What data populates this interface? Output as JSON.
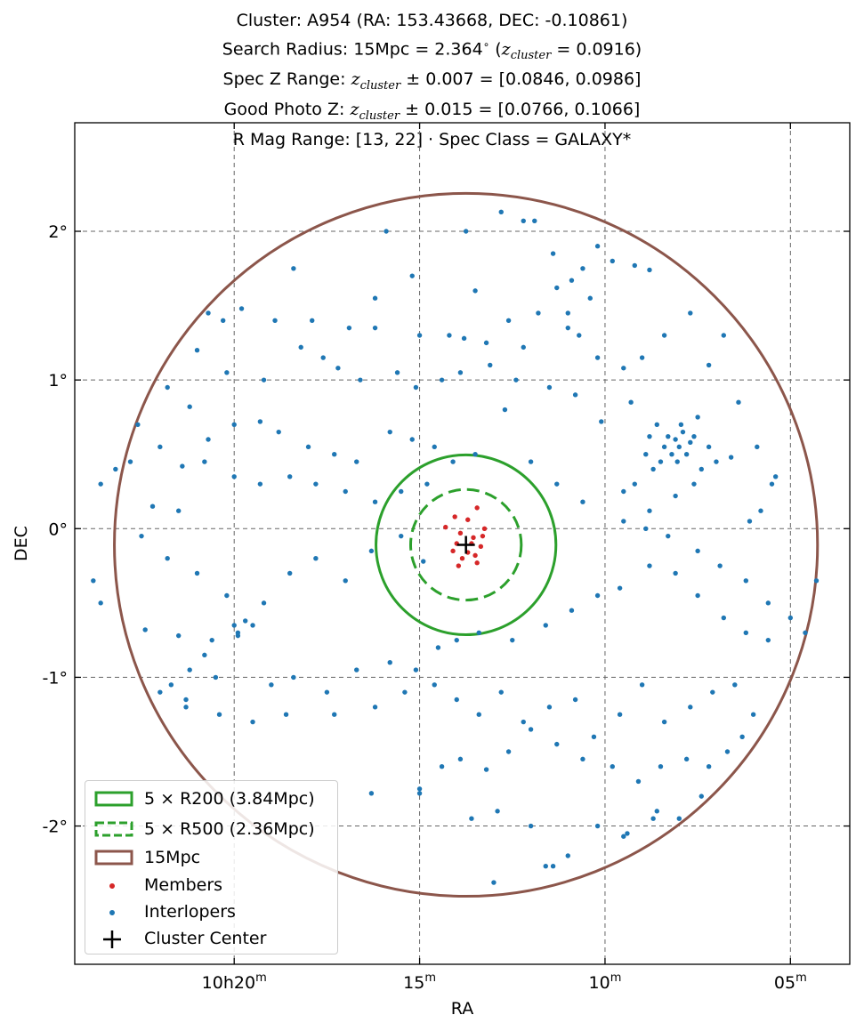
{
  "title": {
    "line1": "Cluster: A954 (RA: 153.43668, DEC: -0.10861)",
    "line2_prefix": "Search Radius: 15Mpc = 2.364",
    "line2_degree": "∘",
    "line2_z": "z",
    "line2_sub": "cluster",
    "line2_suffix": "= 0.0916)",
    "line3_prefix": "Spec Z Range:",
    "line3_z": "z",
    "line3_sub": "cluster",
    "line3_suffix": "± 0.007 = [0.0846, 0.0986]",
    "line4_prefix": "Good Photo Z:",
    "line4_z": "z",
    "line4_sub": "cluster",
    "line4_suffix": "± 0.015 = [0.0766, 0.1066]",
    "line5": "R Mag Range: [13, 22] · Spec Class = GALAXY*"
  },
  "chart_data": {
    "type": "scatter",
    "xlabel": "RA",
    "ylabel": "DEC",
    "x_axis": {
      "units": "RA minutes (10h)",
      "inverted": true,
      "range": [
        24.3,
        3.4
      ],
      "ticks": [
        {
          "value": 20,
          "label_main": "10h20",
          "label_sup": "m"
        },
        {
          "value": 15,
          "label_main": "15",
          "label_sup": "m"
        },
        {
          "value": 10,
          "label_main": "10",
          "label_sup": "m"
        },
        {
          "value": 5,
          "label_main": "05",
          "label_sup": "m"
        }
      ]
    },
    "y_axis": {
      "units": "deg",
      "range": [
        -2.93,
        2.73
      ],
      "ticks": [
        {
          "value": 2,
          "label": "2°"
        },
        {
          "value": 1,
          "label": "1°"
        },
        {
          "value": 0,
          "label": "0°"
        },
        {
          "value": -1,
          "label": "-1°"
        },
        {
          "value": -2,
          "label": "-2°"
        }
      ]
    },
    "grid": true,
    "cluster_center": {
      "ra_min": 13.75,
      "dec": -0.10861
    },
    "circles": [
      {
        "name": "5 × R200 (3.84Mpc)",
        "radius_deg": 0.605,
        "color": "#2ca02c",
        "style": "solid"
      },
      {
        "name": "5 × R500 (2.36Mpc)",
        "radius_deg": 0.372,
        "color": "#2ca02c",
        "style": "dashed"
      },
      {
        "name": "15Mpc",
        "radius_deg": 2.364,
        "color": "#8c564b",
        "style": "solid"
      }
    ],
    "members": {
      "name": "Members",
      "color": "#d62728",
      "points": [
        [
          14.05,
          0.08
        ],
        [
          13.7,
          0.06
        ],
        [
          13.45,
          0.14
        ],
        [
          14.3,
          0.01
        ],
        [
          13.9,
          -0.03
        ],
        [
          13.55,
          -0.06
        ],
        [
          13.25,
          0.0
        ],
        [
          14.0,
          -0.1
        ],
        [
          13.7,
          -0.16
        ],
        [
          13.35,
          -0.12
        ],
        [
          13.85,
          -0.2
        ],
        [
          13.45,
          -0.23
        ],
        [
          14.1,
          -0.15
        ],
        [
          13.6,
          -0.1
        ],
        [
          13.3,
          -0.05
        ],
        [
          13.95,
          -0.25
        ],
        [
          13.5,
          -0.18
        ]
      ]
    },
    "interlopers": {
      "name": "Interlopers",
      "color": "#1f77b4",
      "points": [
        [
          13.75,
          2.0
        ],
        [
          12.8,
          2.13
        ],
        [
          12.2,
          2.07
        ],
        [
          11.9,
          2.07
        ],
        [
          15.9,
          2.0
        ],
        [
          18.4,
          1.75
        ],
        [
          15.2,
          1.7
        ],
        [
          13.5,
          1.6
        ],
        [
          11.4,
          1.85
        ],
        [
          10.2,
          1.9
        ],
        [
          9.8,
          1.8
        ],
        [
          9.2,
          1.77
        ],
        [
          8.8,
          1.74
        ],
        [
          10.6,
          1.75
        ],
        [
          10.9,
          1.67
        ],
        [
          11.3,
          1.62
        ],
        [
          11.0,
          1.45
        ],
        [
          10.7,
          1.3
        ],
        [
          10.4,
          1.55
        ],
        [
          16.2,
          1.55
        ],
        [
          19.8,
          1.48
        ],
        [
          20.7,
          1.45
        ],
        [
          20.3,
          1.4
        ],
        [
          18.9,
          1.4
        ],
        [
          17.9,
          1.4
        ],
        [
          16.9,
          1.35
        ],
        [
          16.2,
          1.35
        ],
        [
          15.0,
          1.3
        ],
        [
          14.2,
          1.3
        ],
        [
          13.8,
          1.28
        ],
        [
          13.2,
          1.25
        ],
        [
          12.6,
          1.4
        ],
        [
          12.2,
          1.22
        ],
        [
          11.8,
          1.45
        ],
        [
          11.0,
          1.35
        ],
        [
          10.2,
          1.15
        ],
        [
          9.5,
          1.08
        ],
        [
          9.0,
          1.15
        ],
        [
          8.4,
          1.3
        ],
        [
          7.7,
          1.45
        ],
        [
          7.2,
          1.1
        ],
        [
          6.8,
          1.3
        ],
        [
          21.0,
          1.2
        ],
        [
          20.2,
          1.05
        ],
        [
          19.2,
          1.0
        ],
        [
          18.2,
          1.22
        ],
        [
          17.6,
          1.15
        ],
        [
          17.2,
          1.08
        ],
        [
          16.6,
          1.0
        ],
        [
          15.6,
          1.05
        ],
        [
          15.1,
          0.95
        ],
        [
          14.4,
          1.0
        ],
        [
          13.9,
          1.05
        ],
        [
          13.1,
          1.1
        ],
        [
          12.4,
          1.0
        ],
        [
          11.5,
          0.95
        ],
        [
          10.8,
          0.9
        ],
        [
          10.1,
          0.72
        ],
        [
          9.3,
          0.85
        ],
        [
          8.6,
          0.7
        ],
        [
          21.8,
          0.95
        ],
        [
          21.2,
          0.82
        ],
        [
          20.7,
          0.6
        ],
        [
          20.0,
          0.7
        ],
        [
          19.3,
          0.72
        ],
        [
          18.8,
          0.65
        ],
        [
          18.0,
          0.55
        ],
        [
          17.3,
          0.5
        ],
        [
          16.7,
          0.45
        ],
        [
          15.8,
          0.65
        ],
        [
          15.2,
          0.6
        ],
        [
          14.6,
          0.55
        ],
        [
          14.1,
          0.45
        ],
        [
          13.5,
          0.5
        ],
        [
          12.7,
          0.8
        ],
        [
          12.0,
          0.45
        ],
        [
          11.3,
          0.3
        ],
        [
          10.6,
          0.18
        ],
        [
          9.5,
          0.25
        ],
        [
          8.8,
          0.12
        ],
        [
          8.1,
          0.22
        ],
        [
          7.6,
          0.3
        ],
        [
          6.6,
          0.48
        ],
        [
          5.9,
          0.55
        ],
        [
          5.4,
          0.35
        ],
        [
          22.6,
          0.7
        ],
        [
          22.0,
          0.55
        ],
        [
          21.4,
          0.42
        ],
        [
          20.8,
          0.45
        ],
        [
          20.0,
          0.35
        ],
        [
          19.3,
          0.3
        ],
        [
          18.5,
          0.35
        ],
        [
          17.8,
          0.3
        ],
        [
          17.0,
          0.25
        ],
        [
          16.2,
          0.18
        ],
        [
          15.5,
          0.25
        ],
        [
          14.8,
          0.3
        ],
        [
          22.8,
          0.45
        ],
        [
          23.2,
          0.4
        ],
        [
          23.6,
          0.3
        ],
        [
          22.2,
          0.15
        ],
        [
          21.5,
          0.12
        ],
        [
          8.1,
          0.6
        ],
        [
          8.0,
          0.55
        ],
        [
          7.9,
          0.65
        ],
        [
          8.2,
          0.5
        ],
        [
          7.8,
          0.5
        ],
        [
          8.3,
          0.62
        ],
        [
          7.7,
          0.58
        ],
        [
          8.05,
          0.45
        ],
        [
          7.95,
          0.7
        ],
        [
          8.4,
          0.55
        ],
        [
          7.6,
          0.62
        ],
        [
          8.5,
          0.45
        ],
        [
          7.4,
          0.4
        ],
        [
          7.2,
          0.55
        ],
        [
          7.0,
          0.45
        ],
        [
          8.7,
          0.4
        ],
        [
          8.9,
          0.5
        ],
        [
          9.2,
          0.3
        ],
        [
          7.5,
          0.75
        ],
        [
          8.8,
          0.62
        ],
        [
          6.4,
          0.85
        ],
        [
          5.8,
          0.12
        ],
        [
          6.1,
          0.05
        ],
        [
          5.5,
          0.3
        ],
        [
          9.5,
          0.05
        ],
        [
          8.9,
          0.0
        ],
        [
          8.3,
          -0.05
        ],
        [
          7.5,
          -0.15
        ],
        [
          6.9,
          -0.25
        ],
        [
          6.2,
          -0.35
        ],
        [
          5.6,
          -0.5
        ],
        [
          5.0,
          -0.6
        ],
        [
          4.6,
          -0.7
        ],
        [
          4.3,
          -0.35
        ],
        [
          22.5,
          -0.05
        ],
        [
          21.8,
          -0.2
        ],
        [
          21.0,
          -0.3
        ],
        [
          20.2,
          -0.45
        ],
        [
          19.2,
          -0.5
        ],
        [
          18.5,
          -0.3
        ],
        [
          17.8,
          -0.2
        ],
        [
          17.0,
          -0.35
        ],
        [
          16.3,
          -0.15
        ],
        [
          15.5,
          -0.05
        ],
        [
          14.9,
          -0.22
        ],
        [
          23.8,
          -0.35
        ],
        [
          23.6,
          -0.5
        ],
        [
          22.4,
          -0.68
        ],
        [
          21.5,
          -0.72
        ],
        [
          20.6,
          -0.75
        ],
        [
          19.9,
          -0.72
        ],
        [
          19.7,
          -0.62
        ],
        [
          19.5,
          -0.65
        ],
        [
          19.9,
          -0.7
        ],
        [
          20.0,
          -0.65
        ],
        [
          20.8,
          -0.85
        ],
        [
          21.2,
          -0.95
        ],
        [
          21.7,
          -1.05
        ],
        [
          22.0,
          -1.1
        ],
        [
          21.3,
          -1.15
        ],
        [
          20.5,
          -1.0
        ],
        [
          19.0,
          -1.05
        ],
        [
          18.4,
          -1.0
        ],
        [
          17.5,
          -1.1
        ],
        [
          16.7,
          -0.95
        ],
        [
          15.8,
          -0.9
        ],
        [
          15.1,
          -0.95
        ],
        [
          14.5,
          -0.8
        ],
        [
          14.0,
          -0.75
        ],
        [
          13.4,
          -0.7
        ],
        [
          12.5,
          -0.75
        ],
        [
          11.6,
          -0.65
        ],
        [
          10.9,
          -0.55
        ],
        [
          10.2,
          -0.45
        ],
        [
          9.6,
          -0.4
        ],
        [
          8.8,
          -0.25
        ],
        [
          8.1,
          -0.3
        ],
        [
          7.5,
          -0.45
        ],
        [
          6.8,
          -0.6
        ],
        [
          6.2,
          -0.7
        ],
        [
          5.6,
          -0.75
        ],
        [
          21.3,
          -1.2
        ],
        [
          20.4,
          -1.25
        ],
        [
          19.5,
          -1.3
        ],
        [
          18.6,
          -1.25
        ],
        [
          17.3,
          -1.25
        ],
        [
          16.2,
          -1.2
        ],
        [
          15.4,
          -1.1
        ],
        [
          14.6,
          -1.05
        ],
        [
          14.0,
          -1.15
        ],
        [
          13.4,
          -1.25
        ],
        [
          12.8,
          -1.1
        ],
        [
          12.2,
          -1.3
        ],
        [
          11.5,
          -1.2
        ],
        [
          10.8,
          -1.15
        ],
        [
          10.3,
          -1.4
        ],
        [
          9.6,
          -1.25
        ],
        [
          9.0,
          -1.05
        ],
        [
          8.4,
          -1.3
        ],
        [
          7.7,
          -1.2
        ],
        [
          7.1,
          -1.1
        ],
        [
          6.5,
          -1.05
        ],
        [
          6.0,
          -1.25
        ],
        [
          6.3,
          -1.4
        ],
        [
          6.7,
          -1.5
        ],
        [
          7.2,
          -1.6
        ],
        [
          7.8,
          -1.55
        ],
        [
          8.5,
          -1.6
        ],
        [
          9.1,
          -1.7
        ],
        [
          9.8,
          -1.6
        ],
        [
          10.6,
          -1.55
        ],
        [
          11.3,
          -1.45
        ],
        [
          12.0,
          -1.35
        ],
        [
          12.6,
          -1.5
        ],
        [
          13.2,
          -1.62
        ],
        [
          13.9,
          -1.55
        ],
        [
          14.4,
          -1.6
        ],
        [
          15.0,
          -1.75
        ],
        [
          16.3,
          -1.78
        ],
        [
          7.4,
          -1.8
        ],
        [
          8.0,
          -1.95
        ],
        [
          8.7,
          -1.95
        ],
        [
          9.4,
          -2.05
        ],
        [
          10.2,
          -2.0
        ],
        [
          11.0,
          -2.2
        ],
        [
          11.6,
          -2.27
        ],
        [
          11.4,
          -2.27
        ],
        [
          12.9,
          -1.9
        ],
        [
          13.6,
          -1.95
        ],
        [
          12.0,
          -2.0
        ],
        [
          13.0,
          -2.38
        ],
        [
          15.0,
          -1.78
        ],
        [
          9.5,
          -2.07
        ],
        [
          8.6,
          -1.9
        ]
      ]
    }
  },
  "legend": {
    "items": [
      "5 × R200 (3.84Mpc)",
      "5 × R500 (2.36Mpc)",
      "15Mpc",
      "Members",
      "Interlopers",
      "Cluster Center"
    ]
  }
}
